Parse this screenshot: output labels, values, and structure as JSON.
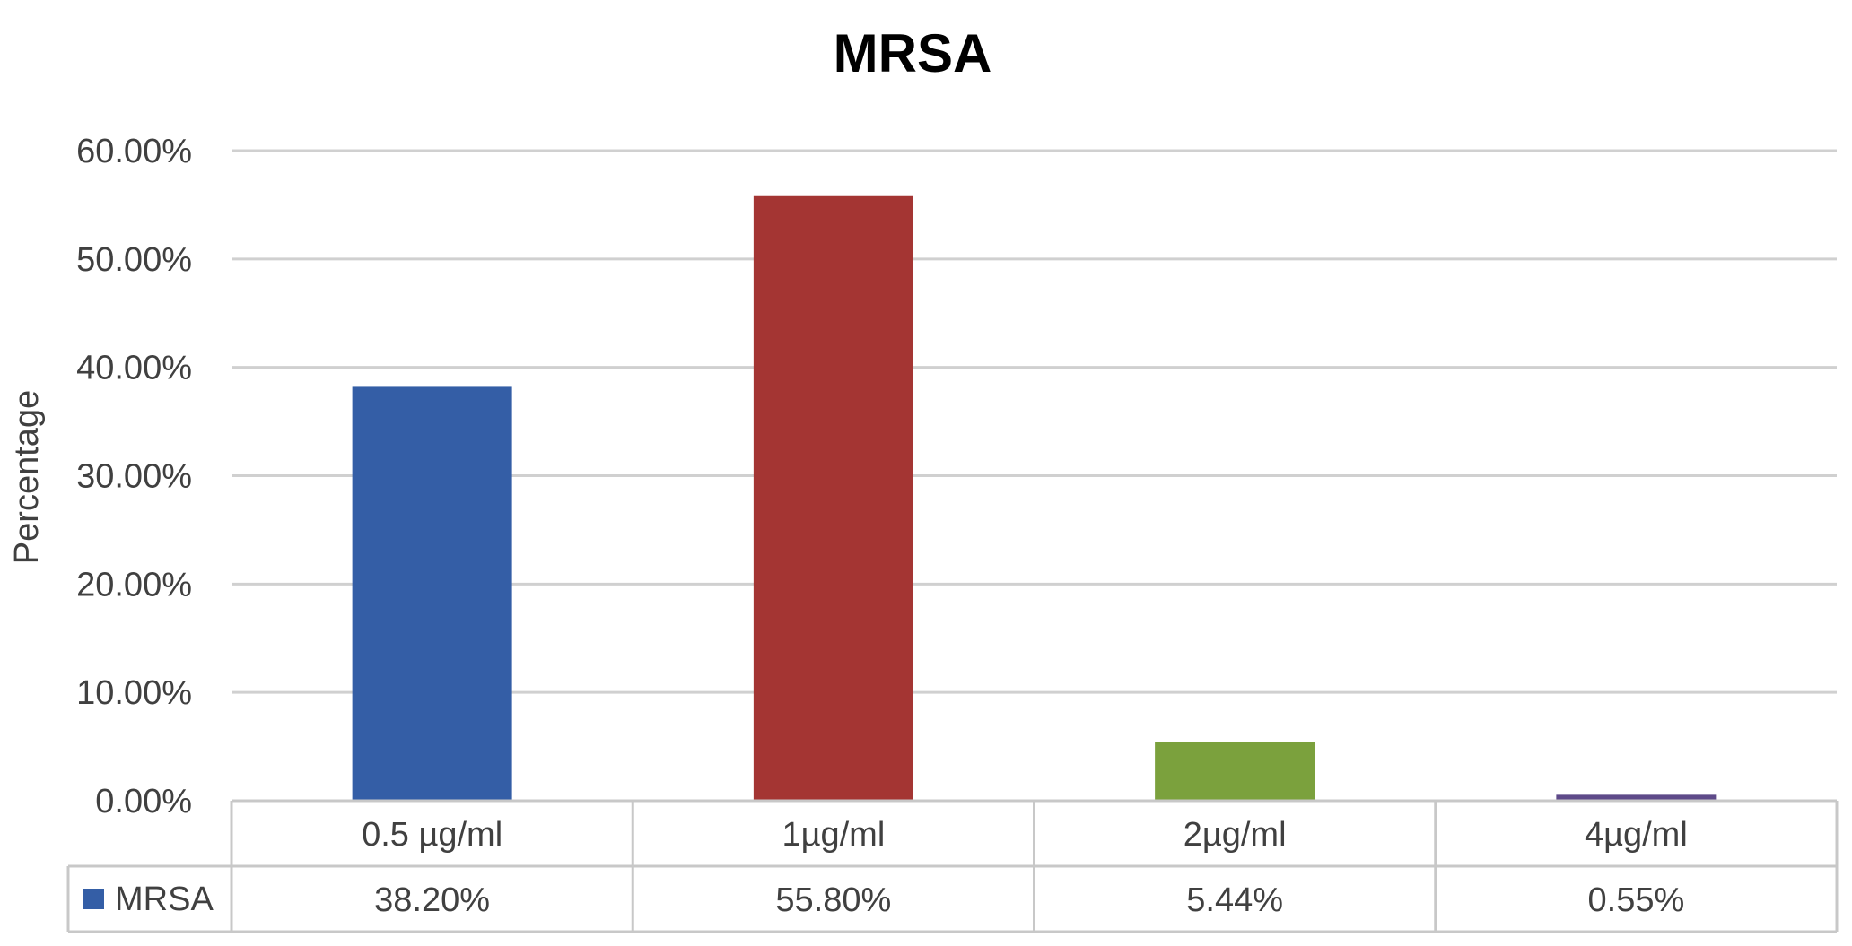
{
  "chart_data": {
    "type": "bar",
    "title": "MRSA",
    "xlabel": "",
    "ylabel": "Percentage",
    "categories": [
      "0.5 µg/ml",
      "1µg/ml",
      "2µg/ml",
      "4µg/ml"
    ],
    "series": [
      {
        "name": "MRSA",
        "values": [
          38.2,
          55.8,
          5.44,
          0.55
        ],
        "value_labels": [
          "38.20%",
          "55.80%",
          "5.44%",
          "0.55%"
        ]
      }
    ],
    "bar_colors": [
      "#345ea6",
      "#a43533",
      "#7ba13d",
      "#5e4a89"
    ],
    "legend_color": "#345ea6",
    "ylim": [
      0,
      60
    ],
    "yticks": [
      0,
      10,
      20,
      30,
      40,
      50,
      60
    ],
    "ytick_labels": [
      "0.00%",
      "10.00%",
      "20.00%",
      "30.00%",
      "40.00%",
      "50.00%",
      "60.00%"
    ],
    "grid": true,
    "data_table": true,
    "legend_position": "in data table"
  }
}
